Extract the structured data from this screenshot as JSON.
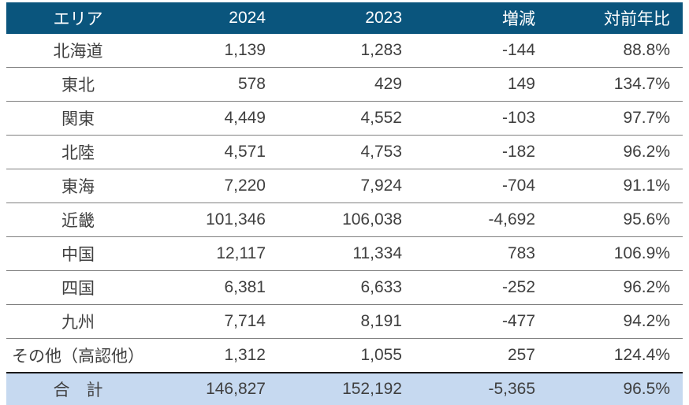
{
  "colors": {
    "header_background": "#0a557d",
    "header_text": "#ffffff",
    "body_text": "#3f3f3f",
    "row_separator": "#808080",
    "total_row_background": "#c6d9f0",
    "total_row_top_border": "#1a1a1a",
    "bottom_border": "#0a557d"
  },
  "chart_data": {
    "type": "table",
    "columns": [
      "エリア",
      "2024",
      "2023",
      "増減",
      "対前年比"
    ],
    "rows": [
      [
        "北海道",
        1139,
        1283,
        -144,
        "88.8%"
      ],
      [
        "東北",
        578,
        429,
        149,
        "134.7%"
      ],
      [
        "関東",
        4449,
        4552,
        -103,
        "97.7%"
      ],
      [
        "北陸",
        4571,
        4753,
        -182,
        "96.2%"
      ],
      [
        "東海",
        7220,
        7924,
        -704,
        "91.1%"
      ],
      [
        "近畿",
        101346,
        106038,
        -4692,
        "95.6%"
      ],
      [
        "中国",
        12117,
        11334,
        783,
        "106.9%"
      ],
      [
        "四国",
        6381,
        6633,
        -252,
        "96.2%"
      ],
      [
        "九州",
        7714,
        8191,
        -477,
        "94.2%"
      ],
      [
        "その他（高認他）",
        1312,
        1055,
        257,
        "124.4%"
      ],
      [
        "合 計",
        146827,
        152192,
        -5365,
        "96.5%"
      ]
    ]
  },
  "table": {
    "columns": [
      {
        "label": "エリア"
      },
      {
        "label": "2024"
      },
      {
        "label": "2023"
      },
      {
        "label": "増減"
      },
      {
        "label": "対前年比"
      }
    ],
    "rows": [
      {
        "area": "北海道",
        "y2024": "1,139",
        "y2023": "1,283",
        "diff": "-144",
        "ratio": "88.8%"
      },
      {
        "area": "東北",
        "y2024": "578",
        "y2023": "429",
        "diff": "149",
        "ratio": "134.7%"
      },
      {
        "area": "関東",
        "y2024": "4,449",
        "y2023": "4,552",
        "diff": "-103",
        "ratio": "97.7%"
      },
      {
        "area": "北陸",
        "y2024": "4,571",
        "y2023": "4,753",
        "diff": "-182",
        "ratio": "96.2%"
      },
      {
        "area": "東海",
        "y2024": "7,220",
        "y2023": "7,924",
        "diff": "-704",
        "ratio": "91.1%"
      },
      {
        "area": "近畿",
        "y2024": "101,346",
        "y2023": "106,038",
        "diff": "-4,692",
        "ratio": "95.6%"
      },
      {
        "area": "中国",
        "y2024": "12,117",
        "y2023": "11,334",
        "diff": "783",
        "ratio": "106.9%"
      },
      {
        "area": "四国",
        "y2024": "6,381",
        "y2023": "6,633",
        "diff": "-252",
        "ratio": "96.2%"
      },
      {
        "area": "九州",
        "y2024": "7,714",
        "y2023": "8,191",
        "diff": "-477",
        "ratio": "94.2%"
      },
      {
        "area": "その他（高認他）",
        "y2024": "1,312",
        "y2023": "1,055",
        "diff": "257",
        "ratio": "124.4%"
      }
    ],
    "total": {
      "area": "合　計",
      "y2024": "146,827",
      "y2023": "152,192",
      "diff": "-5,365",
      "ratio": "96.5%"
    }
  }
}
